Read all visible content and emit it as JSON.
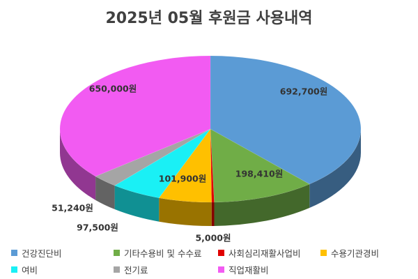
{
  "chart_data": {
    "type": "pie",
    "title": "2025년 05월 후원금 사용내역",
    "unit": "원",
    "slices": [
      {
        "label": "건강진단비",
        "value": 692700,
        "value_label": "692,700원",
        "color": "#5B9BD5"
      },
      {
        "label": "기타수용비 및 수수료",
        "value": 198410,
        "value_label": "198,410원",
        "color": "#70AD47"
      },
      {
        "label": "사회심리재활사업비",
        "value": 5000,
        "value_label": "5,000원",
        "color": "#E00000"
      },
      {
        "label": "수용기관경비",
        "value": 101900,
        "value_label": "101,900원",
        "color": "#FFC000"
      },
      {
        "label": "여비",
        "value": 97500,
        "value_label": "97,500원",
        "color": "#1AF0F5"
      },
      {
        "label": "전기료",
        "value": 51240,
        "value_label": "51,240원",
        "color": "#A5A5A5"
      },
      {
        "label": "직업재활비",
        "value": 650000,
        "value_label": "650,000원",
        "color": "#F25BF2"
      }
    ],
    "legend_position": "bottom"
  }
}
